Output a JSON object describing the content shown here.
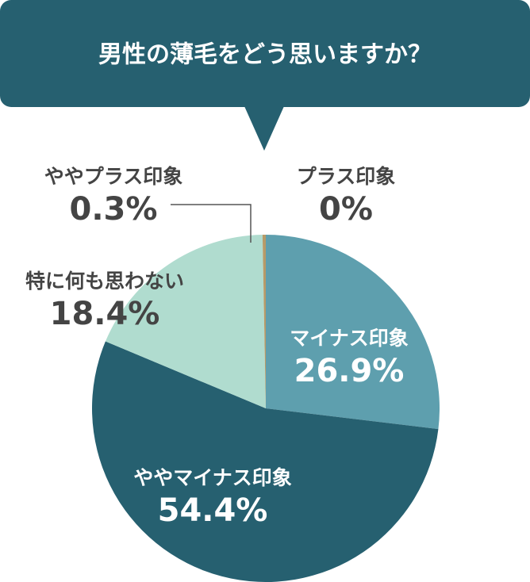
{
  "chart_data": {
    "type": "pie",
    "title": "男性の薄毛をどう思いますか？",
    "categories": [
      "マイナス印象",
      "ややマイナス印象",
      "特に何も思わない",
      "ややプラス印象",
      "プラス印象"
    ],
    "values": [
      26.9,
      54.4,
      18.4,
      0.3,
      0
    ],
    "value_labels": [
      "26.9%",
      "54.4%",
      "18.4%",
      "0.3%",
      "0%"
    ],
    "colors": [
      "#5e9fae",
      "#266070",
      "#b0dccf",
      "#b79a68",
      "#b79a68"
    ]
  }
}
